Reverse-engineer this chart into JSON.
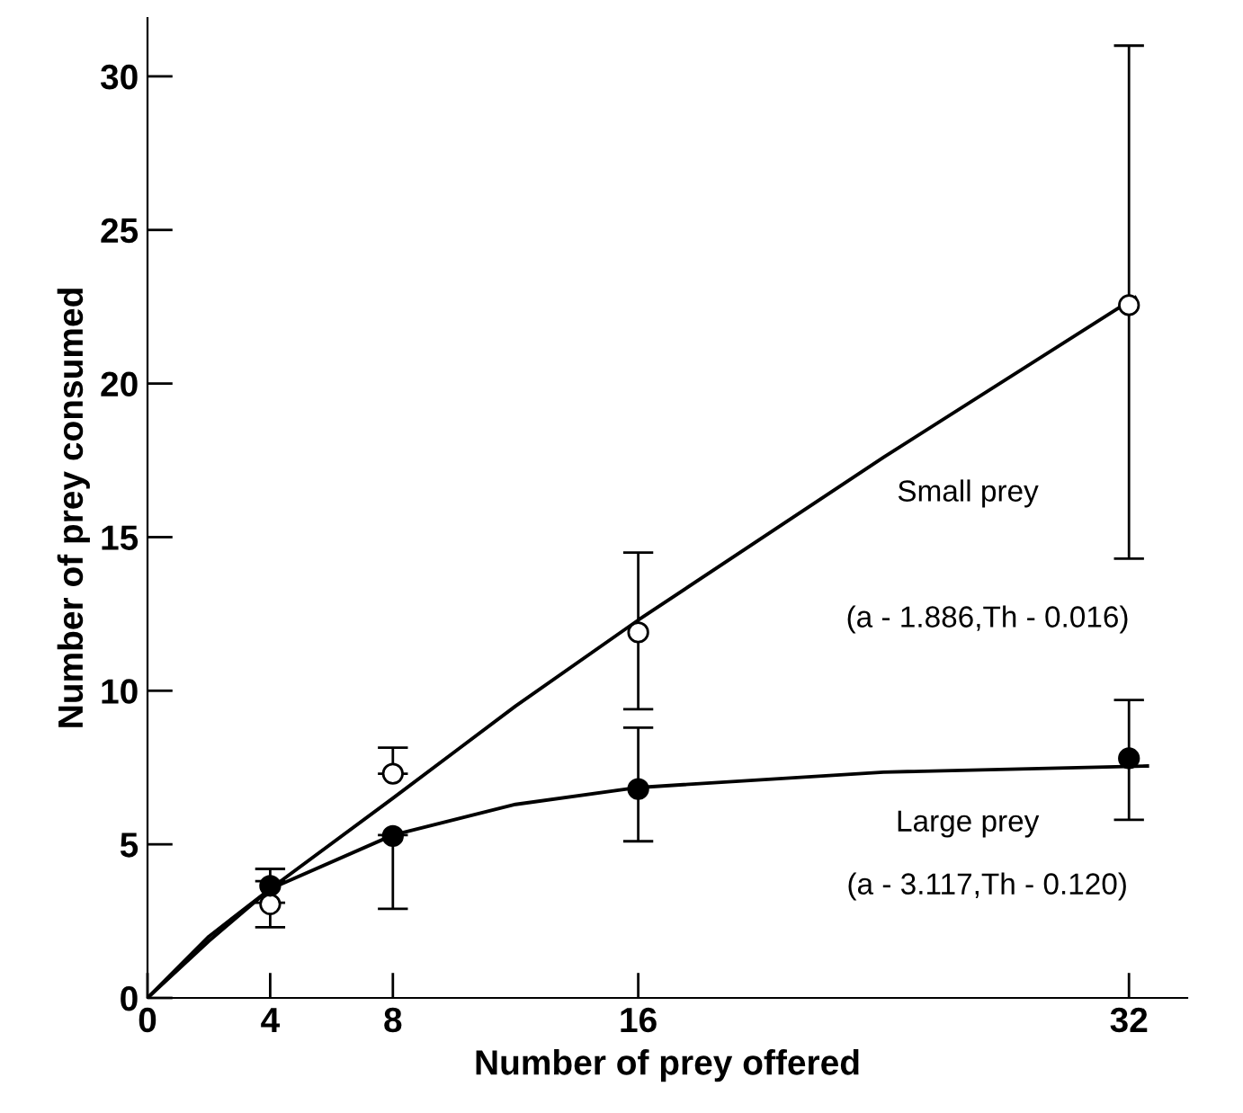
{
  "chart_data": {
    "type": "line",
    "xlabel": "Number of prey offered",
    "ylabel": "Number of prey consumed",
    "x": [
      4,
      8,
      16,
      32
    ],
    "series": [
      {
        "type": "scatter",
        "color": "#ffffff",
        "values": [
          3.05,
          7.3,
          11.9,
          22.55
        ],
        "errors": [
          [
            2.3,
            3.8
          ],
          [
            7.3,
            8.15
          ],
          [
            9.4,
            14.5
          ],
          [
            14.3,
            31.0
          ]
        ]
      },
      {
        "type": "scatter",
        "color": "#000000",
        "values": [
          3.65,
          5.27,
          6.8,
          7.8
        ],
        "errors": [
          [
            3.1,
            4.2
          ],
          [
            2.9,
            5.3
          ],
          [
            5.1,
            8.8
          ],
          [
            5.8,
            9.7
          ]
        ]
      },
      {
        "name": "Small prey",
        "marker": "none",
        "color": "#000000",
        "x": [
          0,
          2,
          4,
          8,
          12,
          16,
          24,
          32.2
        ],
        "values": [
          0,
          1.85,
          3.55,
          6.5,
          9.5,
          12.3,
          17.6,
          22.8
        ]
      },
      {
        "name": "Large prey",
        "marker": "none",
        "color": "#000000",
        "x": [
          0,
          2,
          4,
          8,
          12,
          16,
          24,
          32.6
        ],
        "values": [
          0,
          2.0,
          3.55,
          5.3,
          6.3,
          6.85,
          7.35,
          7.55
        ]
      }
    ],
    "annotations": [
      "(a - 1.886,Th - 0.016)",
      "(a - 3.117,Th - 0.120)"
    ],
    "xlim": [
      0,
      33.9
    ],
    "ylim": [
      0,
      31.9
    ],
    "xticks": [
      0,
      4,
      8,
      16,
      32
    ],
    "yticks": [
      0,
      5,
      10,
      15,
      20,
      25,
      30
    ],
    "marker": "circle",
    "grid": false,
    "legend": false
  }
}
